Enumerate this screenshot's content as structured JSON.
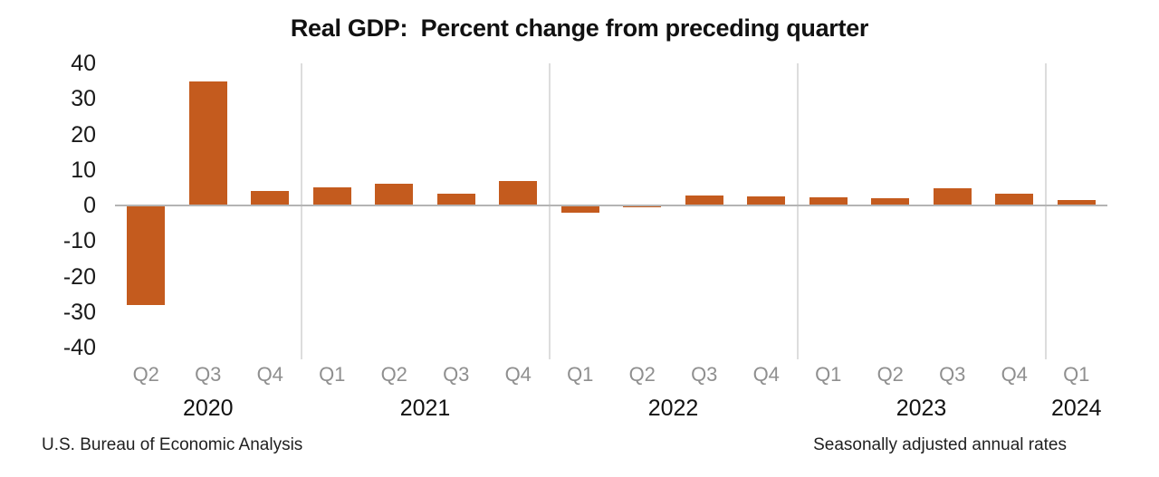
{
  "footnotes": {
    "left": "U.S. Bureau of Economic Analysis",
    "right": "Seasonally adjusted annual rates"
  },
  "colors": {
    "bar": "#c45b1e",
    "zero_axis_line": "#b4b4b4",
    "year_separator_gridline": "#dddddd",
    "quarter_label": "#8f8f8f",
    "tick_label": "#1a1a1a",
    "title": "#111111",
    "background": "#ffffff"
  },
  "chart_data": {
    "type": "bar",
    "title": "Real GDP:  Percent change from preceding quarter",
    "ylabel": "",
    "xlabel": "",
    "categories": [
      "Q2",
      "Q3",
      "Q4",
      "Q1",
      "Q2",
      "Q3",
      "Q4",
      "Q1",
      "Q2",
      "Q3",
      "Q4",
      "Q1",
      "Q2",
      "Q3",
      "Q4",
      "Q1"
    ],
    "values": [
      -28.0,
      34.8,
      4.2,
      5.2,
      6.2,
      3.3,
      7.0,
      -2.0,
      -0.6,
      2.7,
      2.6,
      2.2,
      2.1,
      4.9,
      3.4,
      1.6
    ],
    "year_groups": [
      {
        "label": "2020",
        "count": 3
      },
      {
        "label": "2021",
        "count": 4
      },
      {
        "label": "2022",
        "count": 4
      },
      {
        "label": "2023",
        "count": 4
      },
      {
        "label": "2024",
        "count": 1
      }
    ],
    "ylim": [
      -40,
      40
    ],
    "yticks": [
      "40",
      "30",
      "20",
      "10",
      "0",
      "-10",
      "-20",
      "-30",
      "-40"
    ],
    "grid": "vertical lines between year groups only; horizontal zero axis line",
    "legend": "none",
    "bar_color": "#c45b1e"
  }
}
